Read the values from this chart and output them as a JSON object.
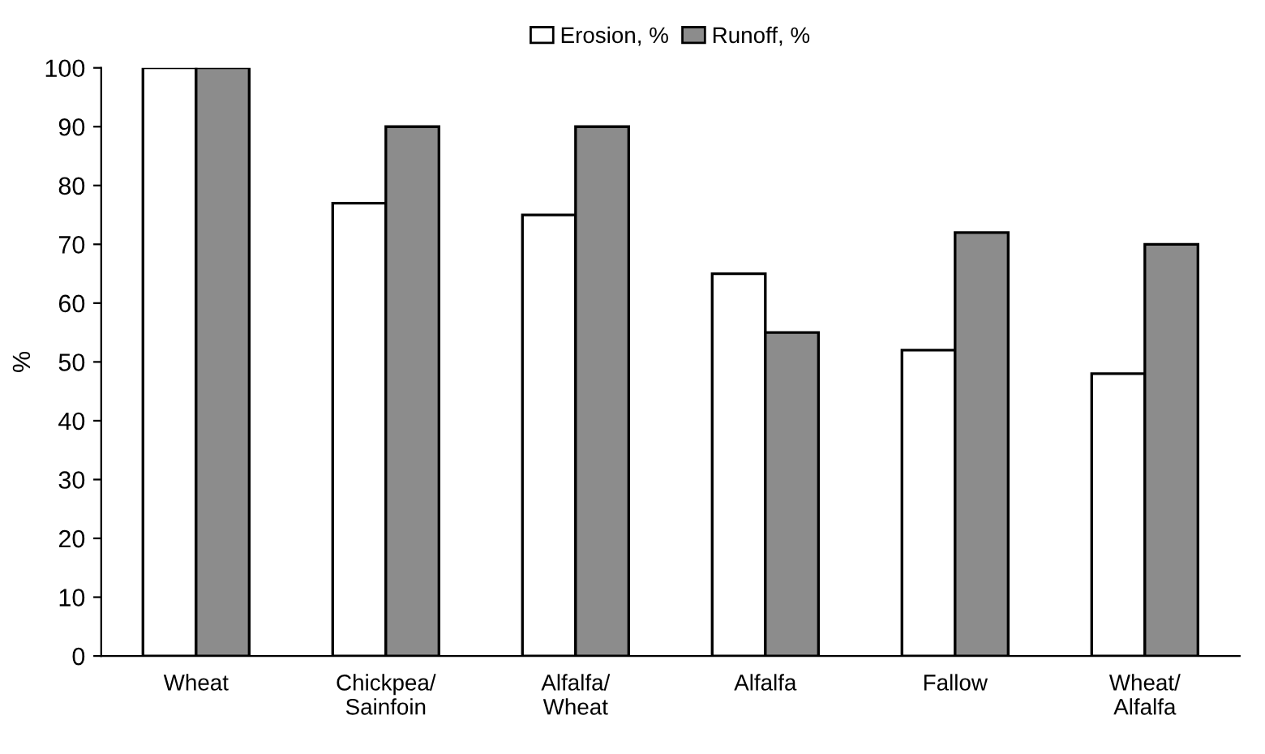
{
  "chart_data": {
    "type": "bar",
    "ylabel": "%",
    "categories": [
      "Wheat",
      "Chickpea/\nSainfoin",
      "Alfalfa/\nWheat",
      "Alfalfa",
      "Fallow",
      "Wheat/\nAlfalfa"
    ],
    "series": [
      {
        "name": "Erosion, %",
        "color": "#ffffff",
        "values": [
          100,
          77,
          75,
          65,
          52,
          48
        ]
      },
      {
        "name": "Runoff, %",
        "color": "#8c8c8c",
        "values": [
          100,
          90,
          90,
          55,
          72,
          70
        ]
      }
    ],
    "ylim": [
      0,
      100
    ],
    "yticks": [
      0,
      10,
      20,
      30,
      40,
      50,
      60,
      70,
      80,
      90,
      100
    ],
    "grid": false,
    "legend": "top"
  }
}
